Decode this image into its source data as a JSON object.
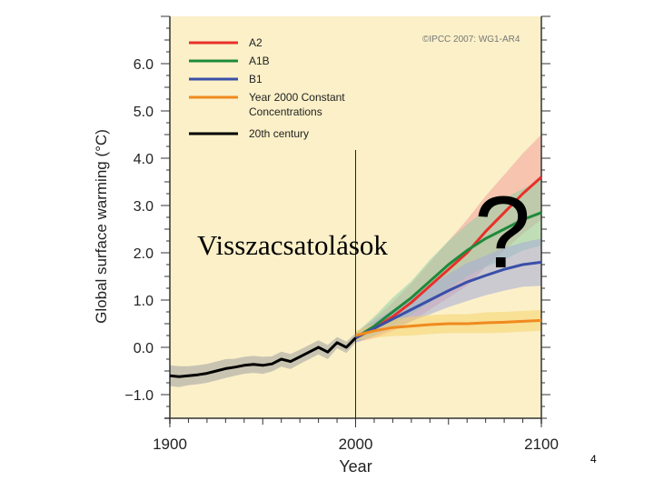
{
  "slide": {
    "overlay_text": "Visszacsatolások",
    "question_mark": "?",
    "page_number": "4"
  },
  "chart_data": {
    "type": "line",
    "title": "",
    "credit": "©IPCC 2007: WG1-AR4",
    "xlabel": "Year",
    "ylabel": "Global surface warming (°C)",
    "xlim": [
      1900,
      2100
    ],
    "ylim": [
      -1.5,
      7.0
    ],
    "x_ticks": [
      1900,
      2000,
      2100
    ],
    "x_tick_labels": [
      "1900",
      "2000",
      "2100"
    ],
    "y_ticks": [
      -1.0,
      0.0,
      1.0,
      2.0,
      3.0,
      4.0,
      5.0,
      6.0
    ],
    "y_tick_labels": [
      "−1.0",
      "0.0",
      "1.0",
      "2.0",
      "3.0",
      "4.0",
      "5.0",
      "6.0"
    ],
    "vertical_marker": 2000,
    "legend_position": "top-left",
    "background_color": "#fbf0c8",
    "series": [
      {
        "name": "A2",
        "color": "#e8302a",
        "band_color": "#f3a09a",
        "x": [
          2000,
          2010,
          2020,
          2030,
          2040,
          2050,
          2060,
          2070,
          2080,
          2090,
          2100
        ],
        "y": [
          0.2,
          0.4,
          0.65,
          0.95,
          1.3,
          1.65,
          2.0,
          2.45,
          2.85,
          3.25,
          3.6
        ],
        "spread": [
          0.1,
          0.2,
          0.3,
          0.4,
          0.5,
          0.6,
          0.7,
          0.75,
          0.8,
          0.85,
          0.9
        ]
      },
      {
        "name": "A1B",
        "color": "#1e8a3c",
        "band_color": "#8fd0a6",
        "x": [
          2000,
          2010,
          2020,
          2030,
          2040,
          2050,
          2060,
          2070,
          2080,
          2090,
          2100
        ],
        "y": [
          0.2,
          0.45,
          0.75,
          1.05,
          1.4,
          1.75,
          2.05,
          2.3,
          2.5,
          2.7,
          2.85
        ],
        "spread": [
          0.1,
          0.2,
          0.3,
          0.35,
          0.45,
          0.5,
          0.55,
          0.6,
          0.65,
          0.65,
          0.7
        ]
      },
      {
        "name": "B1",
        "color": "#3a4fa8",
        "band_color": "#a4acd8",
        "x": [
          2000,
          2010,
          2020,
          2030,
          2040,
          2050,
          2060,
          2070,
          2080,
          2090,
          2100
        ],
        "y": [
          0.2,
          0.4,
          0.6,
          0.8,
          1.0,
          1.2,
          1.38,
          1.52,
          1.65,
          1.75,
          1.8
        ],
        "spread": [
          0.1,
          0.15,
          0.2,
          0.25,
          0.3,
          0.35,
          0.4,
          0.42,
          0.45,
          0.47,
          0.5
        ]
      },
      {
        "name": "Year 2000 Constant Concentrations",
        "color": "#f08a1e",
        "band_color": "#f6d36c",
        "x": [
          2000,
          2010,
          2020,
          2030,
          2040,
          2050,
          2060,
          2070,
          2080,
          2090,
          2100
        ],
        "y": [
          0.25,
          0.35,
          0.42,
          0.45,
          0.48,
          0.5,
          0.5,
          0.52,
          0.53,
          0.55,
          0.57
        ],
        "spread": [
          0.1,
          0.15,
          0.18,
          0.2,
          0.2,
          0.2,
          0.2,
          0.22,
          0.22,
          0.22,
          0.22
        ]
      },
      {
        "name": "20th century",
        "color": "#000000",
        "band_color": "#a0a0a0",
        "x": [
          1900,
          1905,
          1910,
          1915,
          1920,
          1925,
          1930,
          1935,
          1940,
          1945,
          1950,
          1955,
          1960,
          1965,
          1970,
          1975,
          1980,
          1985,
          1990,
          1995,
          2000
        ],
        "y": [
          -0.6,
          -0.62,
          -0.6,
          -0.58,
          -0.55,
          -0.5,
          -0.45,
          -0.42,
          -0.38,
          -0.36,
          -0.38,
          -0.35,
          -0.25,
          -0.3,
          -0.2,
          -0.1,
          0.0,
          -0.1,
          0.1,
          0.0,
          0.2
        ],
        "spread": [
          0.22,
          0.22,
          0.2,
          0.2,
          0.2,
          0.2,
          0.2,
          0.18,
          0.18,
          0.18,
          0.18,
          0.16,
          0.16,
          0.16,
          0.15,
          0.15,
          0.15,
          0.15,
          0.12,
          0.12,
          0.1
        ]
      }
    ]
  }
}
